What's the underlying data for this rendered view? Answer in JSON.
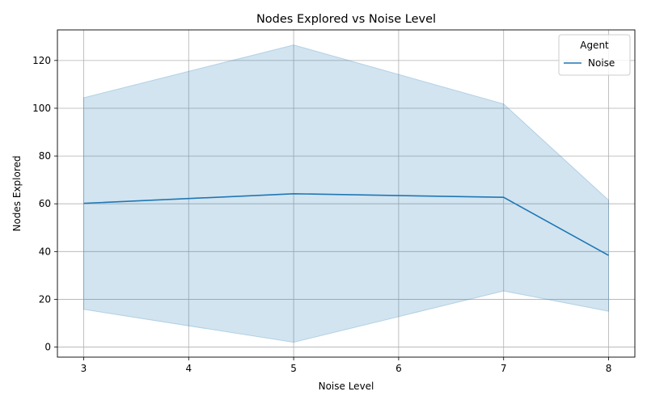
{
  "chart_data": {
    "type": "line",
    "title": "Nodes Explored vs Noise Level",
    "xlabel": "Noise Level",
    "ylabel": "Nodes Explored",
    "x": [
      3,
      5,
      7,
      8
    ],
    "series": [
      {
        "name": "Noise",
        "values": [
          60.2,
          64.2,
          62.7,
          38.4
        ],
        "lower": [
          15.8,
          2.0,
          23.5,
          15.0
        ],
        "upper": [
          104.4,
          126.5,
          101.8,
          61.5
        ],
        "color": "#1f77b4",
        "band_color": "#1f77b4"
      }
    ],
    "xlim": [
      2.75,
      8.25
    ],
    "ylim": [
      -4.2,
      132.8
    ],
    "xticks": [
      3,
      4,
      5,
      6,
      7,
      8
    ],
    "yticks": [
      0,
      20,
      40,
      60,
      80,
      100,
      120
    ],
    "grid": true,
    "legend": {
      "title": "Agent",
      "position": "top-right"
    }
  }
}
